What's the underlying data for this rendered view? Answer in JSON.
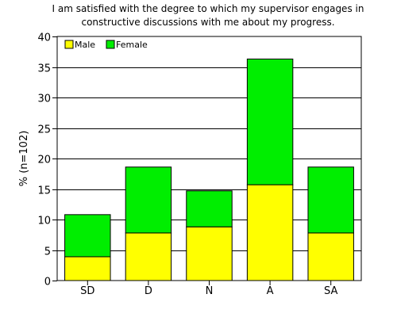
{
  "chart_data": {
    "type": "bar",
    "stacked": true,
    "title_lines": [
      "I am satisfied with the degree to which my supervisor engages in",
      "constructive discussions with me about my progress."
    ],
    "xlabel": "",
    "ylabel": "% (n=102)",
    "ylim": [
      0,
      40
    ],
    "yticks": [
      0,
      5,
      10,
      15,
      20,
      25,
      30,
      35,
      40
    ],
    "grid": true,
    "legend_position": "top-left",
    "categories": [
      "SD",
      "D",
      "N",
      "A",
      "SA"
    ],
    "series": [
      {
        "name": "Male",
        "color": "#ffff00",
        "values": [
          3.9,
          7.8,
          8.8,
          15.7,
          7.8
        ]
      },
      {
        "name": "Female",
        "color": "#00ee00",
        "values": [
          6.9,
          10.8,
          5.9,
          20.6,
          10.8
        ]
      }
    ]
  }
}
